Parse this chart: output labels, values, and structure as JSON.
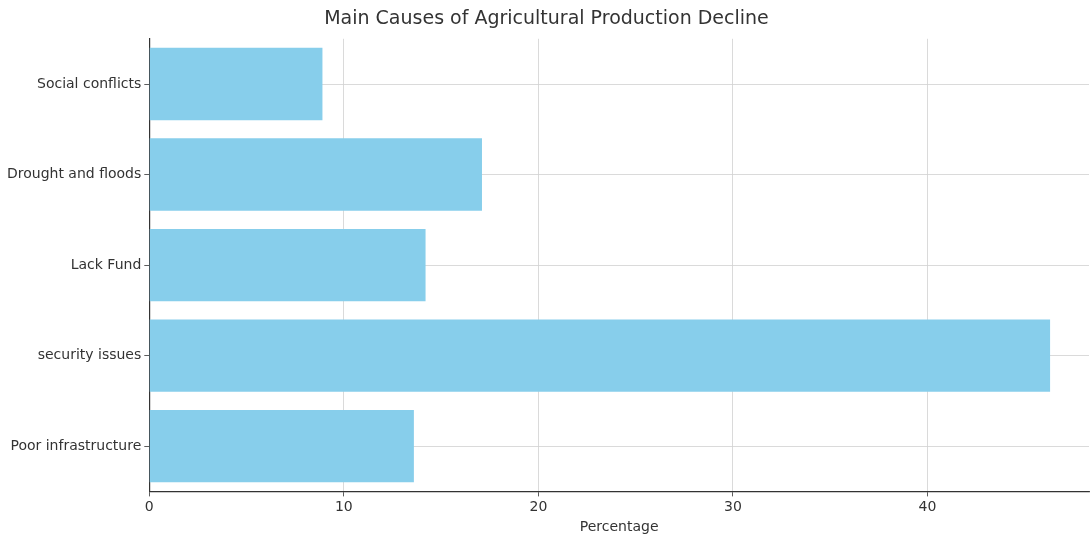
{
  "chart_data": {
    "type": "bar",
    "orientation": "horizontal",
    "title": "Main Causes of Agricultural Production Decline",
    "xlabel": "Percentage",
    "categories": [
      "Social conflicts",
      "Drought and floods",
      "Lack Fund",
      "security issues",
      "Poor infrastructure"
    ],
    "values": [
      8.9,
      17.1,
      14.2,
      46.3,
      13.6
    ],
    "color": "#87ceeb",
    "xlim": [
      0,
      48.3
    ],
    "xticks": [
      0,
      10,
      20,
      30,
      40
    ],
    "grid": true
  }
}
